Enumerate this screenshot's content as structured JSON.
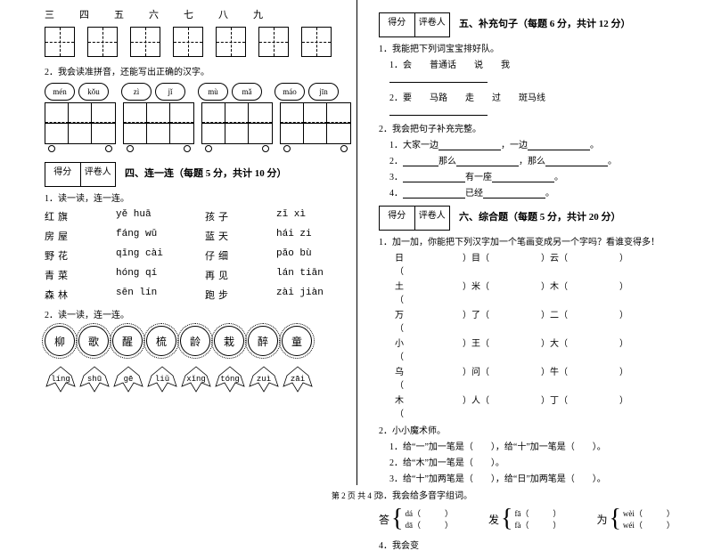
{
  "leftCol": {
    "numbers": [
      "三",
      "四",
      "五",
      "六",
      "七",
      "八",
      "九"
    ],
    "q2": "2．我会读准拼音，还能写出正确的汉字。",
    "clouds": [
      "mén",
      "kǒu",
      "zì",
      "jǐ",
      "mù",
      "mǎ",
      "máo",
      "jīn"
    ],
    "section4": {
      "score": [
        "得分",
        "评卷人"
      ],
      "title": "四、连一连（每题 5 分，共计 10 分）"
    },
    "q4_1": "1．读一读，连一连。",
    "wordRows": [
      [
        "红旗",
        "yě  huā",
        "孩子",
        "zǐ  xì"
      ],
      [
        "房屋",
        "fáng  wū",
        "蓝天",
        "hái  zi"
      ],
      [
        "野花",
        "qīng  cài",
        "仔细",
        "pǎo  bù"
      ],
      [
        "青菜",
        "hóng  qí",
        "再见",
        "lán  tiān"
      ],
      [
        "森林",
        "sēn  lín",
        "跑步",
        "zài  jiàn"
      ]
    ],
    "q4_2": "2．读一读，连一连。",
    "flowers": [
      "柳",
      "歌",
      "醒",
      "梳",
      "龄",
      "栽",
      "醉",
      "童"
    ],
    "leaves": [
      "líng",
      "shū",
      "gē",
      "liǔ",
      "xǐng",
      "tóng",
      "zuì",
      "zāi"
    ]
  },
  "rightCol": {
    "section5": {
      "score": [
        "得分",
        "评卷人"
      ],
      "title": "五、补充句子（每题 6 分，共计 12 分）"
    },
    "q5_1": "1．我能把下列词宝宝排好队。",
    "q5_1_1": "1．会　　普通话　　说　　我",
    "q5_1_2": "2．要　　马路　　走　　过　　斑马线",
    "q5_2": "2．我会把句子补充完整。",
    "q5_2_1": "1．大家一边",
    "q5_2_1b": "，一边",
    "q5_2_2": "2．",
    "q5_2_2m": "那么",
    "q5_2_2e": "，那么",
    "q5_2_3": "3．",
    "q5_2_3m": "有一座",
    "q5_2_4": "4．",
    "q5_2_4m": "已经",
    "section6": {
      "score": [
        "得分",
        "评卷人"
      ],
      "title": "六、综合题（每题 5 分，共计 20 分）"
    },
    "q6_1": "1．加一加，你能把下列汉字加一个笔画变成另一个字吗？看谁变得多！",
    "hanziRows": [
      [
        "日（",
        "）目（",
        "）云（",
        "）"
      ],
      [
        "土（",
        "）米（",
        "）木（",
        "）"
      ],
      [
        "万（",
        "）了（",
        "）二（",
        "）"
      ],
      [
        "小（",
        "）王（",
        "）大（",
        "）"
      ],
      [
        "乌（",
        "）问（",
        "）牛（",
        "）"
      ],
      [
        "木（",
        "）人（",
        "）丁（",
        "）"
      ]
    ],
    "q6_2": "2．小小魔术师。",
    "q6_2_1": "1．给“一”加一笔是（　　），给“十”加一笔是（　　）。",
    "q6_2_2": "2．给“木”加一笔是（　　）。",
    "q6_2_3": "3．给“十”加两笔是（　　），给“日”加两笔是（　　）。",
    "q6_3": "3．我会给多音字组词。",
    "polys": [
      {
        "char": "答",
        "top": "dá（　　　）",
        "bot": "dā（　　　）"
      },
      {
        "char": "发",
        "top": "fā（　　　）",
        "bot": "fà（　　　）"
      },
      {
        "char": "为",
        "top": "wèi（　　　）",
        "bot": "wéi（　　　）"
      }
    ],
    "q6_4": "4．我会变"
  },
  "footer": "第 2 页  共 4 页"
}
